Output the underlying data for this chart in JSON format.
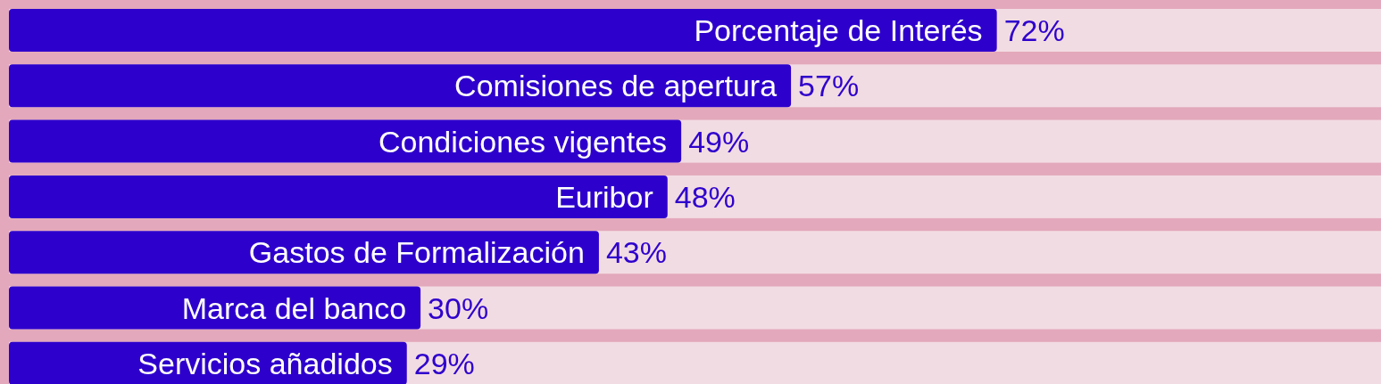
{
  "chart_data": {
    "type": "bar",
    "orientation": "horizontal",
    "categories": [
      "Porcentaje de Interés",
      "Comisiones de apertura",
      "Condiciones vigentes",
      "Euribor",
      "Gastos de Formalización",
      "Marca del banco",
      "Servicios añadidos"
    ],
    "values": [
      72,
      57,
      49,
      48,
      43,
      30,
      29
    ],
    "value_labels": [
      "72%",
      "57%",
      "49%",
      "48%",
      "43%",
      "30%",
      "29%"
    ],
    "color": "#2e00cc",
    "xlim": [
      0,
      100
    ]
  }
}
